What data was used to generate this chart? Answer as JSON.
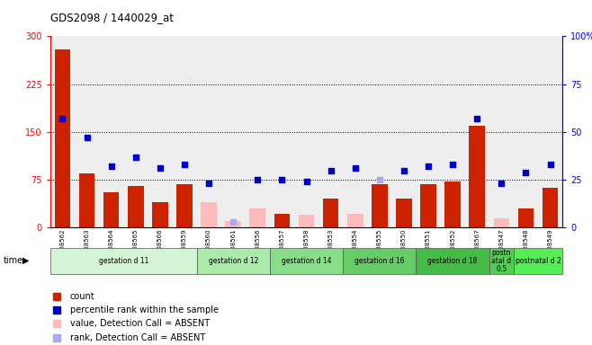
{
  "title": "GDS2098 / 1440029_at",
  "samples": [
    "GSM108562",
    "GSM108563",
    "GSM108564",
    "GSM108565",
    "GSM108566",
    "GSM108559",
    "GSM108560",
    "GSM108561",
    "GSM108556",
    "GSM108557",
    "GSM108558",
    "GSM108553",
    "GSM108554",
    "GSM108555",
    "GSM108550",
    "GSM108551",
    "GSM108552",
    "GSM108567",
    "GSM108547",
    "GSM108548",
    "GSM108549"
  ],
  "count_values": [
    280,
    85,
    55,
    65,
    40,
    68,
    0,
    0,
    0,
    22,
    0,
    45,
    0,
    68,
    45,
    68,
    72,
    160,
    0,
    30,
    62
  ],
  "count_absent": [
    false,
    false,
    false,
    false,
    false,
    false,
    true,
    true,
    true,
    false,
    true,
    false,
    true,
    false,
    false,
    false,
    false,
    false,
    true,
    false,
    false
  ],
  "absent_count": [
    0,
    0,
    0,
    0,
    0,
    0,
    40,
    10,
    30,
    0,
    20,
    0,
    22,
    0,
    0,
    0,
    0,
    0,
    15,
    0,
    0
  ],
  "pct_values": [
    57,
    47,
    32,
    37,
    31,
    33,
    23,
    0,
    25,
    25,
    24,
    30,
    31,
    25,
    30,
    32,
    33,
    57,
    23,
    29,
    33
  ],
  "pct_absent": [
    false,
    false,
    false,
    false,
    false,
    false,
    false,
    true,
    false,
    false,
    false,
    false,
    false,
    true,
    false,
    false,
    false,
    false,
    false,
    false,
    false
  ],
  "absent_pct": [
    0,
    0,
    0,
    0,
    0,
    0,
    0,
    3,
    0,
    0,
    0,
    0,
    0,
    25,
    0,
    0,
    0,
    0,
    0,
    0,
    0
  ],
  "groups": [
    {
      "label": "gestation d 11",
      "start": 0,
      "end": 5,
      "color": "#d4f5d4"
    },
    {
      "label": "gestation d 12",
      "start": 6,
      "end": 8,
      "color": "#aaeaaa"
    },
    {
      "label": "gestation d 14",
      "start": 9,
      "end": 11,
      "color": "#88dd88"
    },
    {
      "label": "gestation d 16",
      "start": 12,
      "end": 14,
      "color": "#66cc66"
    },
    {
      "label": "gestation d 18",
      "start": 15,
      "end": 17,
      "color": "#44bb44"
    },
    {
      "label": "postn\natal d\n0.5",
      "start": 18,
      "end": 18,
      "color": "#55cc55"
    },
    {
      "label": "postnatal d 2",
      "start": 19,
      "end": 20,
      "color": "#55ee55"
    }
  ],
  "ylim_left": [
    0,
    300
  ],
  "ylim_right": [
    0,
    100
  ],
  "yticks_left": [
    0,
    75,
    150,
    225,
    300
  ],
  "yticks_right": [
    0,
    25,
    50,
    75,
    100
  ],
  "ytick_labels_left": [
    "0",
    "75",
    "150",
    "225",
    "300"
  ],
  "ytick_labels_right": [
    "0",
    "25",
    "50",
    "75",
    "100%"
  ],
  "bar_color": "#cc2200",
  "bar_color_pink": "#ffbbbb",
  "dot_color": "#0000cc",
  "dot_color_light": "#aaaaee",
  "plot_bg": "#eeeeee",
  "legend_items": [
    {
      "color": "#cc2200",
      "label": "count"
    },
    {
      "color": "#0000cc",
      "label": "percentile rank within the sample"
    },
    {
      "color": "#ffbbbb",
      "label": "value, Detection Call = ABSENT"
    },
    {
      "color": "#aaaaee",
      "label": "rank, Detection Call = ABSENT"
    }
  ]
}
